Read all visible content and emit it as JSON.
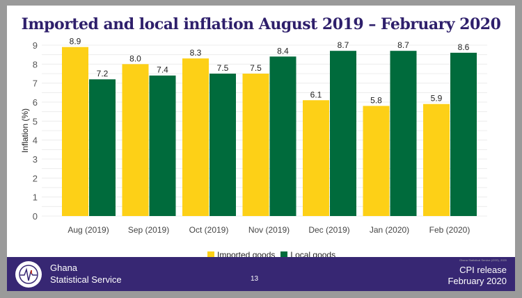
{
  "chart_data": {
    "type": "bar",
    "title": "Imported and local inflation August 2019 – February 2020",
    "xlabel": "",
    "ylabel": "Inflation (%)",
    "ylim": [
      0,
      9
    ],
    "yticks": [
      0,
      1,
      2,
      3,
      4,
      5,
      6,
      7,
      8,
      9
    ],
    "grid": true,
    "legend_position": "bottom",
    "categories": [
      "Aug (2019)",
      "Sep (2019)",
      "Oct (2019)",
      "Nov (2019)",
      "Dec (2019)",
      "Jan (2020)",
      "Feb (2020)"
    ],
    "series": [
      {
        "name": "Imported goods",
        "color": "#fdd017",
        "values": [
          8.9,
          8.0,
          8.3,
          7.5,
          6.1,
          5.8,
          5.9
        ]
      },
      {
        "name": "Local goods",
        "color": "#006b3c",
        "values": [
          7.2,
          7.4,
          7.5,
          8.4,
          8.7,
          8.7,
          8.6
        ]
      }
    ]
  },
  "footer": {
    "org_line1": "Ghana",
    "org_line2": "Statistical Service",
    "page_number": "13",
    "release_line1": "CPI release",
    "release_line2": "February 2020",
    "credit": "Ghana Statistical Service (GSS), 2020"
  },
  "colors": {
    "title": "#2e1f6b",
    "footer_bg": "#372773"
  }
}
